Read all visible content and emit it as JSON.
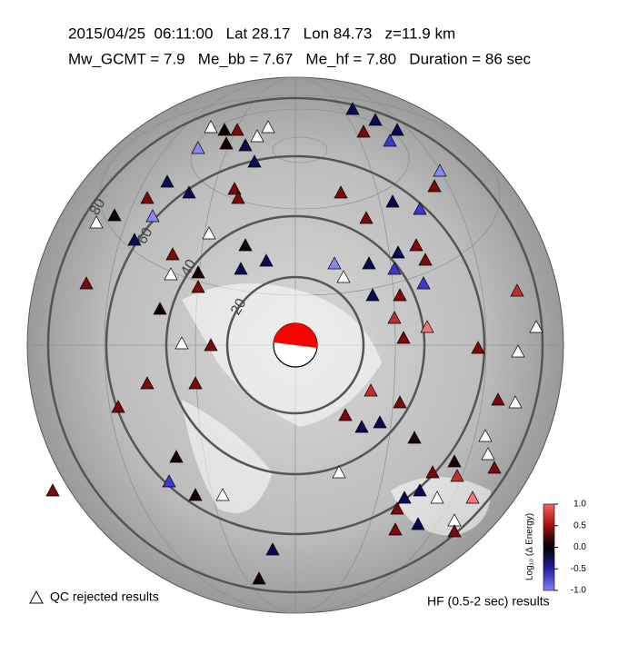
{
  "header": {
    "line1": "2015/04/25  06:11:00   Lat 28.17   Lon 84.73   z=11.9 km",
    "line2": "Mw_GCMT = 7.9   Me_bb = 7.67   Me_hf = 7.80   Duration = 86 sec"
  },
  "rings": {
    "labels": [
      "20",
      "40",
      "60",
      "80"
    ]
  },
  "legend": {
    "qc": "QC rejected results",
    "hf": "HF (0.5-2 sec) results"
  },
  "colorbar": {
    "label": "Log₁₀ (Δ Energy)",
    "lim": [
      -1,
      1
    ],
    "ticks": [
      {
        "value": 1,
        "label": "1.0"
      },
      0.5,
      {
        "value": 0,
        "label": "0.0"
      },
      -0.5,
      {
        "value": -1,
        "label": "-1.0"
      }
    ]
  }
}
